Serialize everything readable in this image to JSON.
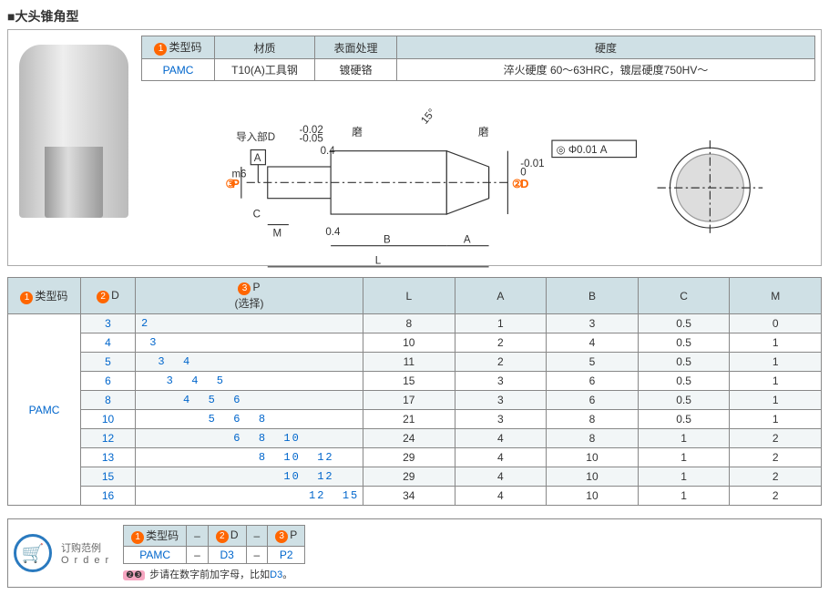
{
  "title": "■大头锥角型",
  "spec_table": {
    "headers": [
      "类型码",
      "材质",
      "表面处理",
      "硬度"
    ],
    "row": {
      "type_code": "PAMC",
      "material": "T10(A)工具钢",
      "surface": "镀硬铬",
      "hardness": "淬火硬度 60～63HRC，镀层硬度750HV～"
    }
  },
  "diagram": {
    "lead_in": "导入部D",
    "lead_tol_top": "-0.02",
    "lead_tol_bot": "-0.05",
    "grind": "磨",
    "angle": "15°",
    "gd_t": "◎ Φ0.01 A",
    "P_label": "P",
    "P_tol": "m6",
    "D_label": "D",
    "D_tol_top": "-0.01",
    "D_tol_bot": "0",
    "dims": [
      "A",
      "B",
      "C",
      "L",
      "M"
    ],
    "chamfer": "0.4"
  },
  "data_table": {
    "headers": [
      "类型码",
      "D",
      "P\n(选择)",
      "L",
      "A",
      "B",
      "C",
      "M"
    ],
    "type_code": "PAMC",
    "rows": [
      {
        "D": "3",
        "P": "2",
        "L": "8",
        "A": "1",
        "B": "3",
        "C": "0.5",
        "M": "0"
      },
      {
        "D": "4",
        "P": " 3",
        "L": "10",
        "A": "2",
        "B": "4",
        "C": "0.5",
        "M": "1"
      },
      {
        "D": "5",
        "P": "  3  4",
        "L": "11",
        "A": "2",
        "B": "5",
        "C": "0.5",
        "M": "1"
      },
      {
        "D": "6",
        "P": "   3  4  5",
        "L": "15",
        "A": "3",
        "B": "6",
        "C": "0.5",
        "M": "1"
      },
      {
        "D": "8",
        "P": "     4  5  6",
        "L": "17",
        "A": "3",
        "B": "6",
        "C": "0.5",
        "M": "1"
      },
      {
        "D": "10",
        "P": "        5  6  8",
        "L": "21",
        "A": "3",
        "B": "8",
        "C": "0.5",
        "M": "1"
      },
      {
        "D": "12",
        "P": "           6  8  10",
        "L": "24",
        "A": "4",
        "B": "8",
        "C": "1",
        "M": "2"
      },
      {
        "D": "13",
        "P": "              8  10  12",
        "L": "29",
        "A": "4",
        "B": "10",
        "C": "1",
        "M": "2"
      },
      {
        "D": "15",
        "P": "                 10  12",
        "L": "29",
        "A": "4",
        "B": "10",
        "C": "1",
        "M": "2"
      },
      {
        "D": "16",
        "P": "                    12  15",
        "L": "34",
        "A": "4",
        "B": "10",
        "C": "1",
        "M": "2"
      }
    ]
  },
  "order": {
    "label": "订购范例",
    "label_en": "Order",
    "headers": [
      "类型码",
      "–",
      "D",
      "–",
      "P"
    ],
    "row": [
      "PAMC",
      "–",
      "D3",
      "–",
      "P2"
    ],
    "note": "步请在数字前加字母，比如",
    "note_ex": "D3",
    "note_end": "。",
    "badges": "❷❸"
  },
  "badges": {
    "1": "1",
    "2": "2",
    "3": "3"
  },
  "colors": {
    "header_bg": "#cfe0e5",
    "border": "#888888",
    "orange": "#ff6600",
    "blue": "#0066cc",
    "stripe": "#f2f6f7"
  }
}
